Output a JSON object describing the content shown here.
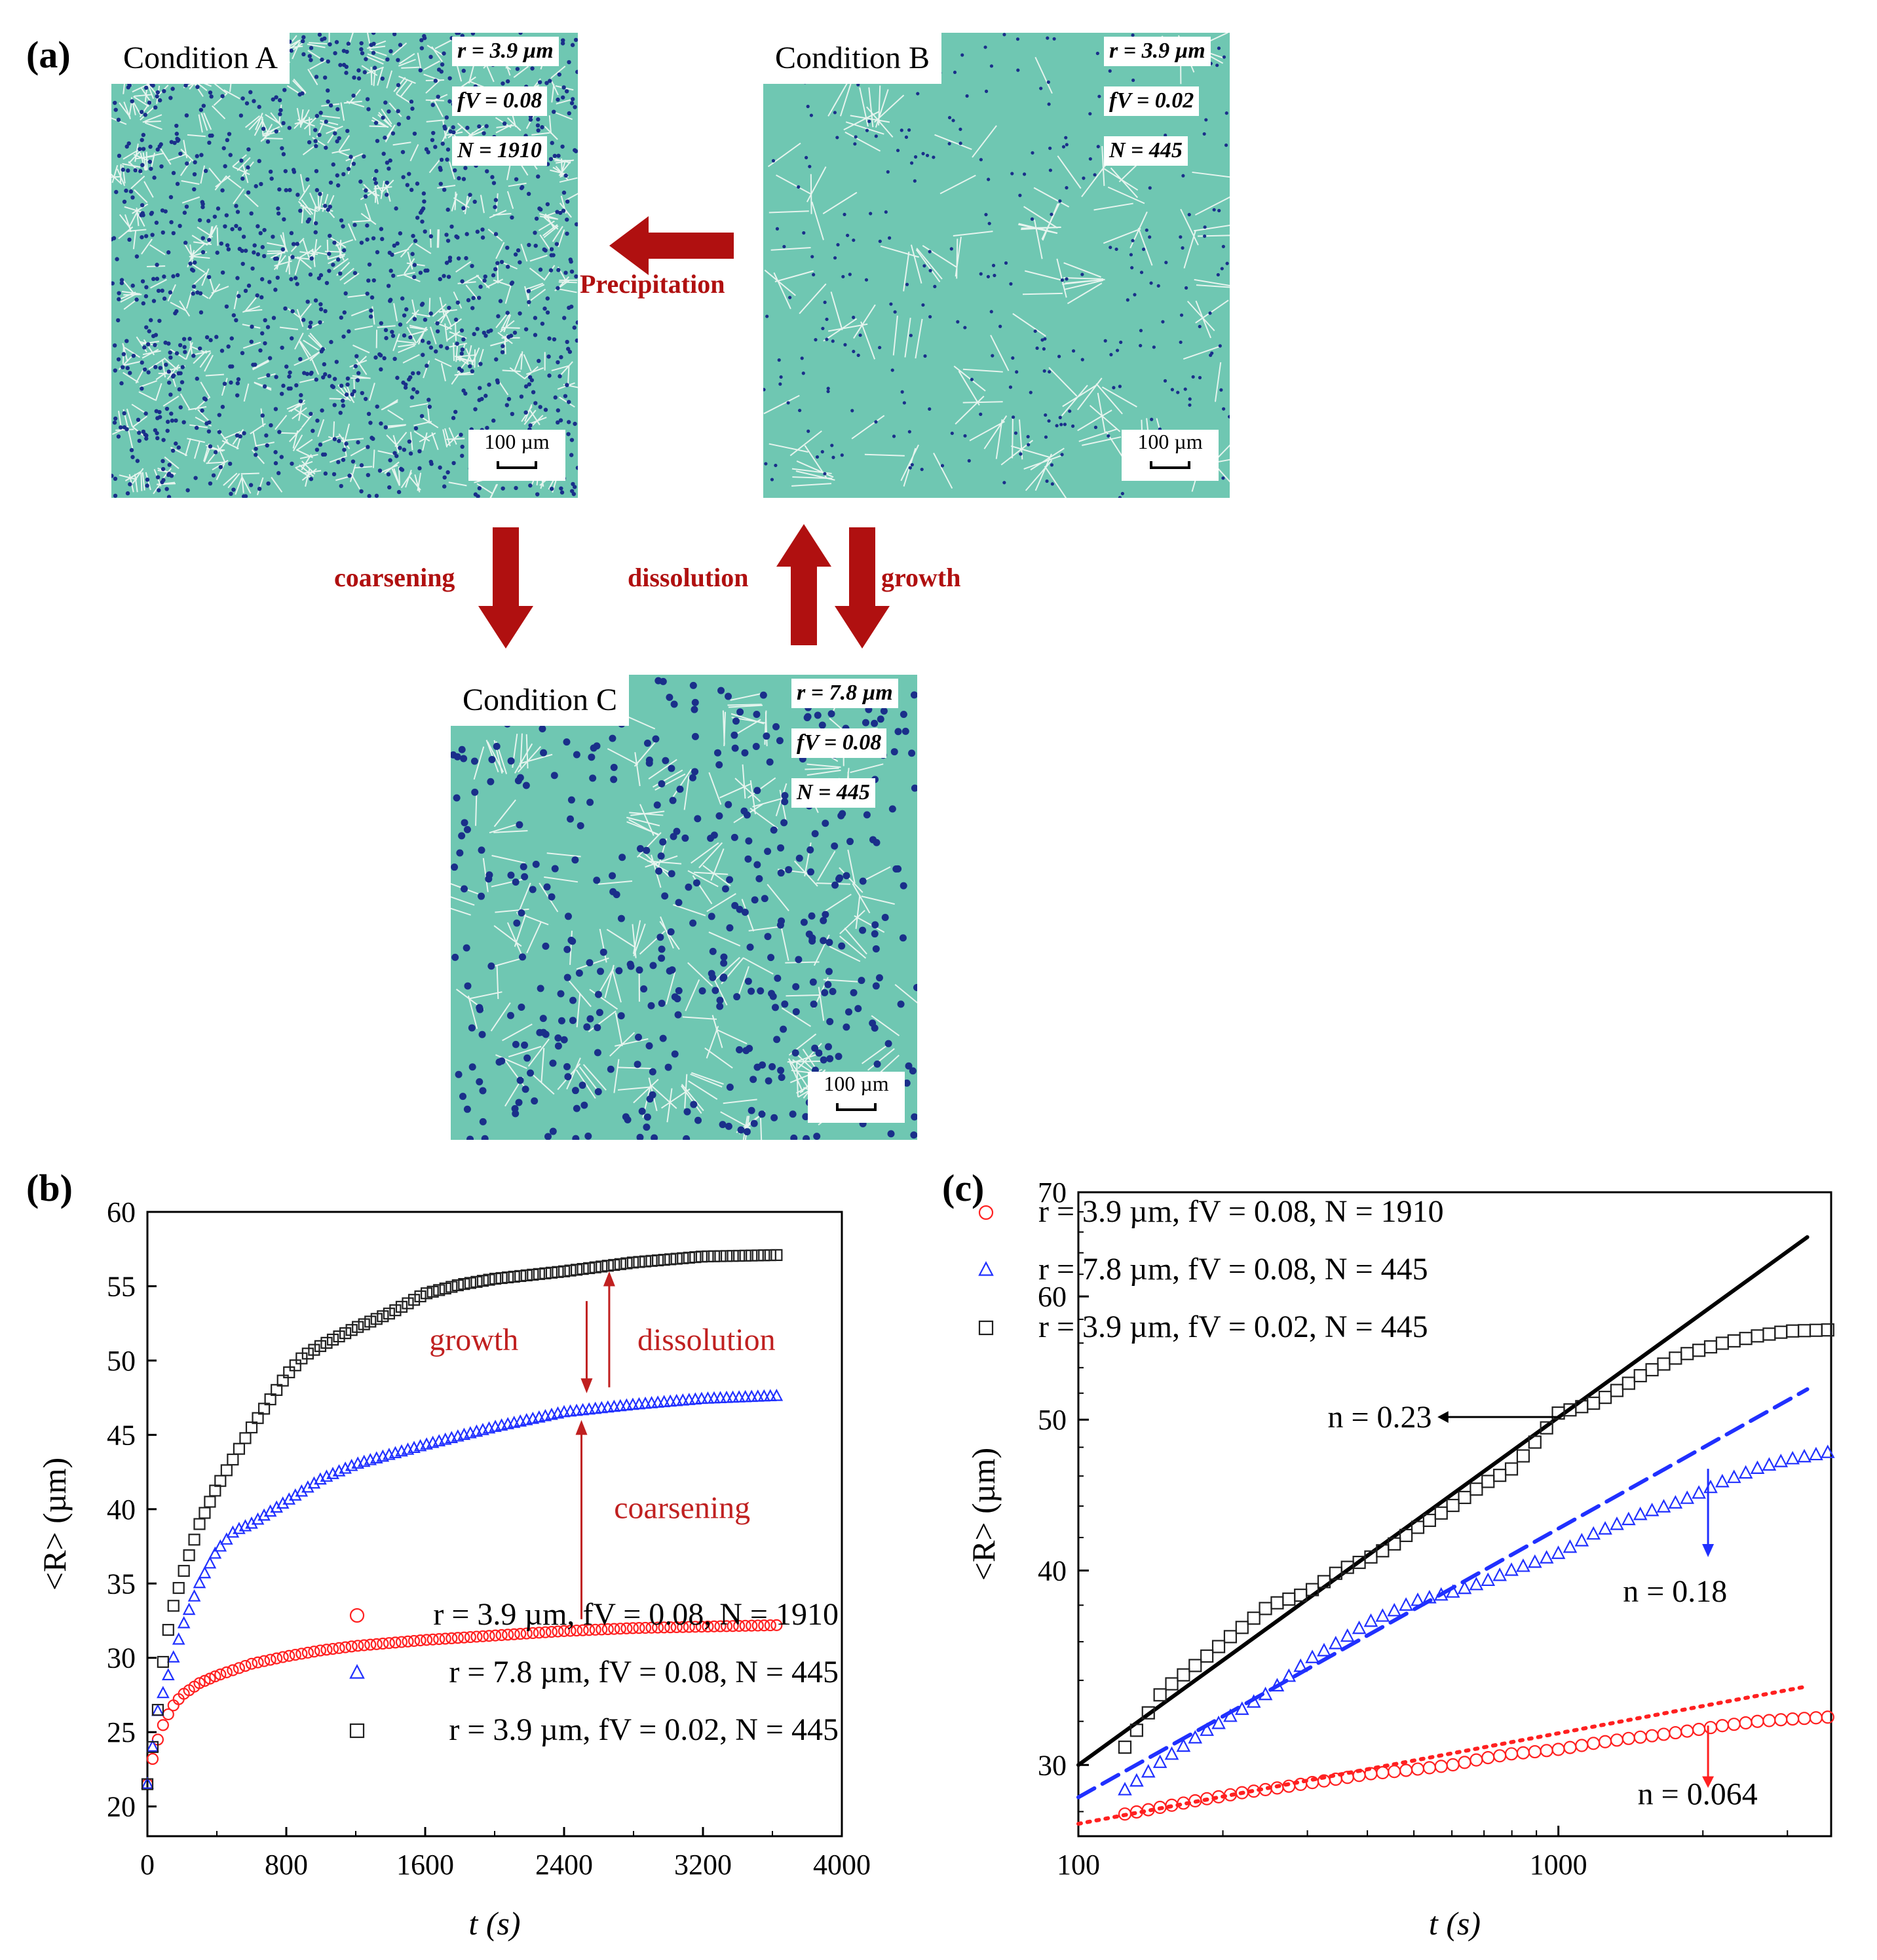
{
  "panel_a": {
    "letter": "(a)",
    "condition_a": {
      "label": "Condition A",
      "r": "r = 3.9 µm",
      "fv": "fV = 0.08",
      "N": "N = 1910",
      "scale": "100 µm"
    },
    "condition_b": {
      "label": "Condition B",
      "r": "r = 3.9 µm",
      "fv": "fV = 0.02",
      "N": "N = 445",
      "scale": "100 µm"
    },
    "condition_c": {
      "label": "Condition C",
      "r": "r = 7.8 µm",
      "fv": "fV = 0.08",
      "N": "N = 445",
      "scale": "100 µm"
    },
    "arrows": {
      "precipitation": "Precipitation",
      "coarsening": "coarsening",
      "dissolution": "dissolution",
      "growth": "growth"
    },
    "colors": {
      "matrix": "#6fc7b2",
      "boundary": "#e6f4ee",
      "precipitate": "#1a2f8a",
      "arrow": "#b01010"
    }
  },
  "panel_b": {
    "letter": "(b)"
  },
  "panel_c": {
    "letter": "(c)"
  },
  "chart_data": [
    {
      "type": "scatter",
      "panel": "(b)",
      "xlabel": "t (s)",
      "ylabel": "<R> (µm)",
      "xlim": [
        0,
        4000
      ],
      "ylim": [
        18,
        60
      ],
      "xticks": [
        0,
        800,
        1600,
        2400,
        3200,
        4000
      ],
      "yticks": [
        20,
        25,
        30,
        35,
        40,
        45,
        50,
        55,
        60
      ],
      "legend_position": "bottom-right",
      "series": [
        {
          "name": "r = 3.9 µm, fV = 0.08, N = 1910",
          "marker": "circle",
          "color": "#ff2020",
          "points": [
            [
              0,
              21.5
            ],
            [
              30,
              23.2
            ],
            [
              60,
              24.5
            ],
            [
              100,
              25.8
            ],
            [
              150,
              26.8
            ],
            [
              200,
              27.5
            ],
            [
              300,
              28.3
            ],
            [
              400,
              28.8
            ],
            [
              600,
              29.6
            ],
            [
              800,
              30.1
            ],
            [
              1000,
              30.5
            ],
            [
              1200,
              30.8
            ],
            [
              1600,
              31.2
            ],
            [
              2000,
              31.5
            ],
            [
              2400,
              31.8
            ],
            [
              2800,
              32.0
            ],
            [
              3200,
              32.1
            ],
            [
              3640,
              32.2
            ]
          ]
        },
        {
          "name": "r = 7.8 µm, fV = 0.08, N = 445",
          "marker": "triangle",
          "color": "#2030ff",
          "points": [
            [
              0,
              21.5
            ],
            [
              30,
              24.0
            ],
            [
              60,
              26.4
            ],
            [
              100,
              28.0
            ],
            [
              150,
              30.0
            ],
            [
              200,
              32.0
            ],
            [
              300,
              35.0
            ],
            [
              400,
              37.2
            ],
            [
              500,
              38.5
            ],
            [
              600,
              39.0
            ],
            [
              800,
              40.5
            ],
            [
              1000,
              42.0
            ],
            [
              1200,
              43.0
            ],
            [
              1600,
              44.3
            ],
            [
              2000,
              45.5
            ],
            [
              2400,
              46.5
            ],
            [
              2800,
              47.0
            ],
            [
              3200,
              47.4
            ],
            [
              3640,
              47.6
            ]
          ]
        },
        {
          "name": "r = 3.9 µm, fV = 0.02, N = 445",
          "marker": "square",
          "color": "#202020",
          "points": [
            [
              0,
              21.5
            ],
            [
              30,
              24.0
            ],
            [
              60,
              26.5
            ],
            [
              100,
              30.8
            ],
            [
              150,
              33.5
            ],
            [
              200,
              35.5
            ],
            [
              300,
              39.0
            ],
            [
              400,
              41.5
            ],
            [
              500,
              43.5
            ],
            [
              600,
              45.5
            ],
            [
              800,
              49.0
            ],
            [
              900,
              50.3
            ],
            [
              1000,
              51.0
            ],
            [
              1200,
              52.2
            ],
            [
              1400,
              53.2
            ],
            [
              1600,
              54.5
            ],
            [
              1800,
              55.1
            ],
            [
              2000,
              55.5
            ],
            [
              2400,
              56.0
            ],
            [
              2800,
              56.6
            ],
            [
              3200,
              57.0
            ],
            [
              3640,
              57.1
            ]
          ]
        }
      ],
      "annotations": [
        {
          "text": "growth",
          "color": "#c02020"
        },
        {
          "text": "dissolution",
          "color": "#c02020"
        },
        {
          "text": "coarsening",
          "color": "#c02020"
        }
      ]
    },
    {
      "type": "scatter",
      "panel": "(c)",
      "scale": "log-log",
      "xlabel": "t (s)",
      "ylabel": "<R> (µm)",
      "xlim": [
        100,
        3700
      ],
      "ylim": [
        27,
        70
      ],
      "xticks": [
        100,
        1000
      ],
      "yticks": [
        30,
        40,
        50,
        60,
        70
      ],
      "legend_position": "top-left",
      "series": [
        {
          "name": "r = 3.9 µm, fV = 0.08, N = 1910",
          "marker": "circle",
          "color": "#ff2020",
          "fit": {
            "n": 0.064,
            "label": "n = 0.064",
            "style": "dotted",
            "x": [
              100,
              3300
            ],
            "y": [
              27.5,
              33.7
            ]
          },
          "points": [
            [
              125,
              27.9
            ],
            [
              150,
              28.2
            ],
            [
              180,
              28.5
            ],
            [
              220,
              28.8
            ],
            [
              260,
              29.0
            ],
            [
              300,
              29.2
            ],
            [
              350,
              29.4
            ],
            [
              400,
              29.6
            ],
            [
              450,
              29.7
            ],
            [
              500,
              29.8
            ],
            [
              600,
              30.0
            ],
            [
              700,
              30.3
            ],
            [
              800,
              30.5
            ],
            [
              1000,
              30.7
            ],
            [
              1200,
              31.0
            ],
            [
              1400,
              31.2
            ],
            [
              1800,
              31.5
            ],
            [
              2200,
              31.8
            ],
            [
              2600,
              32.0
            ],
            [
              3000,
              32.1
            ],
            [
              3640,
              32.2
            ]
          ]
        },
        {
          "name": "r = 7.8 µm, fV = 0.08, N = 445",
          "marker": "triangle",
          "color": "#2030ff",
          "fit": {
            "n": 0.18,
            "label": "n = 0.18",
            "style": "dashed",
            "x": [
              100,
              3300
            ],
            "y": [
              28.6,
              52.3
            ]
          },
          "points": [
            [
              125,
              28.9
            ],
            [
              150,
              30.2
            ],
            [
              180,
              31.4
            ],
            [
              210,
              32.3
            ],
            [
              250,
              33.4
            ],
            [
              300,
              35.0
            ],
            [
              350,
              36.0
            ],
            [
              400,
              37.0
            ],
            [
              450,
              37.6
            ],
            [
              500,
              38.2
            ],
            [
              600,
              38.7
            ],
            [
              700,
              39.3
            ],
            [
              800,
              40.0
            ],
            [
              1000,
              41.0
            ],
            [
              1200,
              42.3
            ],
            [
              1500,
              43.5
            ],
            [
              1800,
              44.3
            ],
            [
              2200,
              45.6
            ],
            [
              2600,
              46.5
            ],
            [
              3000,
              47.1
            ],
            [
              3640,
              47.6
            ]
          ]
        },
        {
          "name": "r = 3.9 µm, fV = 0.02, N = 445",
          "marker": "square",
          "color": "#202020",
          "fit": {
            "n": 0.23,
            "label": "n = 0.23",
            "style": "solid",
            "x": [
              100,
              3300
            ],
            "y": [
              30.0,
              65.5
            ]
          },
          "points": [
            [
              125,
              30.8
            ],
            [
              150,
              33.5
            ],
            [
              180,
              35.0
            ],
            [
              210,
              36.4
            ],
            [
              250,
              38.0
            ],
            [
              300,
              38.7
            ],
            [
              350,
              40.0
            ],
            [
              400,
              40.7
            ],
            [
              450,
              41.5
            ],
            [
              500,
              42.5
            ],
            [
              600,
              44.0
            ],
            [
              700,
              45.5
            ],
            [
              800,
              46.5
            ],
            [
              900,
              48.5
            ],
            [
              1000,
              50.5
            ],
            [
              1200,
              51.3
            ],
            [
              1500,
              53.5
            ],
            [
              1800,
              55.0
            ],
            [
              2200,
              56.0
            ],
            [
              2600,
              56.6
            ],
            [
              3000,
              57.0
            ],
            [
              3640,
              57.1
            ]
          ]
        }
      ]
    }
  ]
}
